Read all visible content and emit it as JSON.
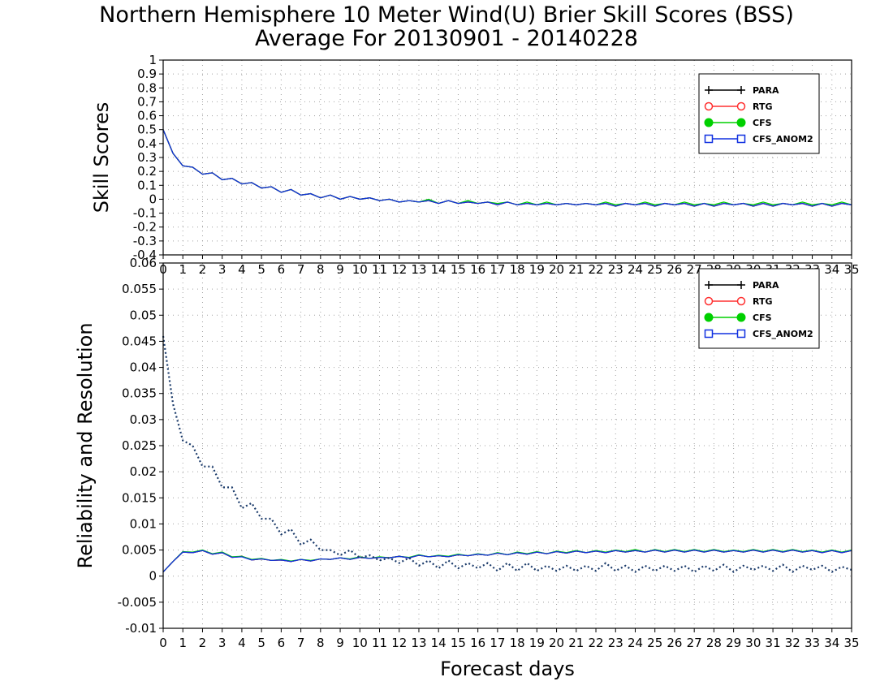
{
  "title": "Northern Hemisphere 10 Meter Wind(U) Brier Skill Scores (BSS)",
  "subtitle": "Average For 20130901 - 20140228",
  "chart_data": [
    {
      "type": "line",
      "ylabel": "Skill Scores",
      "xlabel": "",
      "xlim": [
        0,
        35
      ],
      "ylim": [
        -0.4,
        1
      ],
      "yticks": [
        "1",
        "0.9",
        "0.8",
        "0.7",
        "0.6",
        "0.5",
        "0.4",
        "0.3",
        "0.2",
        "0.1",
        "0",
        "-0.1",
        "-0.2",
        "-0.3",
        "-0.4"
      ],
      "xticks": [
        "0",
        "1",
        "2",
        "3",
        "4",
        "5",
        "6",
        "7",
        "8",
        "9",
        "10",
        "11",
        "12",
        "13",
        "14",
        "15",
        "16",
        "17",
        "18",
        "19",
        "20",
        "21",
        "22",
        "23",
        "24",
        "25",
        "26",
        "27",
        "28",
        "29",
        "30",
        "31",
        "32",
        "33",
        "34",
        "35"
      ],
      "grid": true,
      "legend_position": "top-right",
      "x": [
        0,
        0.5,
        1,
        1.5,
        2,
        2.5,
        3,
        3.5,
        4,
        4.5,
        5,
        5.5,
        6,
        6.5,
        7,
        7.5,
        8,
        8.5,
        9,
        9.5,
        10,
        10.5,
        11,
        11.5,
        12,
        12.5,
        13,
        13.5,
        14,
        14.5,
        15,
        15.5,
        16,
        16.5,
        17,
        17.5,
        18,
        18.5,
        19,
        19.5,
        20,
        20.5,
        21,
        21.5,
        22,
        22.5,
        23,
        23.5,
        24,
        24.5,
        25,
        25.5,
        26,
        26.5,
        27,
        27.5,
        28,
        28.5,
        29,
        29.5,
        30,
        30.5,
        31,
        31.5,
        32,
        32.5,
        33,
        33.5,
        34,
        34.5,
        35
      ],
      "series": [
        {
          "name": "PARA",
          "color": "#000000",
          "marker": "plus",
          "values": [
            0.5,
            0.33,
            0.24,
            0.23,
            0.18,
            0.19,
            0.14,
            0.15,
            0.11,
            0.12,
            0.08,
            0.09,
            0.05,
            0.07,
            0.03,
            0.04,
            0.01,
            0.03,
            0.0,
            0.02,
            0.0,
            0.01,
            -0.01,
            0.0,
            -0.02,
            -0.01,
            -0.02,
            -0.01,
            -0.03,
            -0.01,
            -0.03,
            -0.02,
            -0.03,
            -0.02,
            -0.04,
            -0.02,
            -0.04,
            -0.03,
            -0.04,
            -0.03,
            -0.04,
            -0.03,
            -0.04,
            -0.03,
            -0.04,
            -0.03,
            -0.05,
            -0.03,
            -0.04,
            -0.03,
            -0.05,
            -0.03,
            -0.04,
            -0.03,
            -0.05,
            -0.03,
            -0.05,
            -0.03,
            -0.04,
            -0.03,
            -0.05,
            -0.03,
            -0.05,
            -0.03,
            -0.04,
            -0.03,
            -0.05,
            -0.03,
            -0.05,
            -0.03,
            -0.04
          ]
        },
        {
          "name": "RTG",
          "color": "#ff3030",
          "marker": "circle",
          "values": [
            0.5,
            0.33,
            0.24,
            0.23,
            0.18,
            0.19,
            0.14,
            0.15,
            0.11,
            0.12,
            0.08,
            0.09,
            0.05,
            0.07,
            0.03,
            0.04,
            0.01,
            0.03,
            0.0,
            0.02,
            0.0,
            0.01,
            -0.01,
            0.0,
            -0.02,
            -0.01,
            -0.02,
            -0.01,
            -0.03,
            -0.01,
            -0.03,
            -0.02,
            -0.03,
            -0.02,
            -0.04,
            -0.02,
            -0.04,
            -0.03,
            -0.04,
            -0.03,
            -0.04,
            -0.03,
            -0.04,
            -0.03,
            -0.04,
            -0.03,
            -0.05,
            -0.03,
            -0.04,
            -0.03,
            -0.05,
            -0.03,
            -0.04,
            -0.03,
            -0.05,
            -0.03,
            -0.05,
            -0.03,
            -0.04,
            -0.03,
            -0.05,
            -0.03,
            -0.05,
            -0.03,
            -0.04,
            -0.03,
            -0.05,
            -0.03,
            -0.05,
            -0.03,
            -0.04
          ]
        },
        {
          "name": "CFS",
          "color": "#00d000",
          "marker": "dot",
          "values": [
            0.5,
            0.33,
            0.24,
            0.23,
            0.18,
            0.19,
            0.14,
            0.15,
            0.11,
            0.12,
            0.08,
            0.09,
            0.05,
            0.07,
            0.03,
            0.04,
            0.01,
            0.03,
            0.0,
            0.02,
            0.0,
            0.01,
            -0.01,
            0.0,
            -0.02,
            -0.01,
            -0.02,
            0.0,
            -0.03,
            -0.01,
            -0.03,
            -0.01,
            -0.03,
            -0.02,
            -0.03,
            -0.02,
            -0.04,
            -0.02,
            -0.04,
            -0.02,
            -0.04,
            -0.03,
            -0.04,
            -0.03,
            -0.04,
            -0.02,
            -0.04,
            -0.03,
            -0.04,
            -0.02,
            -0.04,
            -0.03,
            -0.04,
            -0.02,
            -0.04,
            -0.03,
            -0.04,
            -0.02,
            -0.04,
            -0.03,
            -0.04,
            -0.02,
            -0.04,
            -0.03,
            -0.04,
            -0.02,
            -0.04,
            -0.03,
            -0.04,
            -0.02,
            -0.04
          ]
        },
        {
          "name": "CFS_ANOM2",
          "color": "#1030e0",
          "marker": "square",
          "values": [
            0.5,
            0.33,
            0.24,
            0.23,
            0.18,
            0.19,
            0.14,
            0.15,
            0.11,
            0.12,
            0.08,
            0.09,
            0.05,
            0.07,
            0.03,
            0.04,
            0.01,
            0.03,
            0.0,
            0.02,
            0.0,
            0.01,
            -0.01,
            0.0,
            -0.02,
            -0.01,
            -0.02,
            -0.01,
            -0.03,
            -0.01,
            -0.03,
            -0.02,
            -0.03,
            -0.02,
            -0.04,
            -0.02,
            -0.04,
            -0.03,
            -0.04,
            -0.03,
            -0.04,
            -0.03,
            -0.04,
            -0.03,
            -0.04,
            -0.03,
            -0.05,
            -0.03,
            -0.04,
            -0.03,
            -0.05,
            -0.03,
            -0.04,
            -0.03,
            -0.05,
            -0.03,
            -0.05,
            -0.03,
            -0.04,
            -0.03,
            -0.05,
            -0.03,
            -0.05,
            -0.03,
            -0.04,
            -0.03,
            -0.05,
            -0.03,
            -0.05,
            -0.03,
            -0.04
          ]
        }
      ]
    },
    {
      "type": "line",
      "ylabel": "Reliability and Resolution",
      "xlabel": "Forecast days",
      "xlim": [
        0,
        35
      ],
      "ylim": [
        -0.01,
        0.06
      ],
      "yticks": [
        "0.06",
        "0.055",
        "0.05",
        "0.045",
        "0.04",
        "0.035",
        "0.03",
        "0.025",
        "0.02",
        "0.015",
        "0.01",
        "0.005",
        "0",
        "-0.005",
        "-0.01"
      ],
      "xticks": [
        "0",
        "1",
        "2",
        "3",
        "4",
        "5",
        "6",
        "7",
        "8",
        "9",
        "10",
        "11",
        "12",
        "13",
        "14",
        "15",
        "16",
        "17",
        "18",
        "19",
        "20",
        "21",
        "22",
        "23",
        "24",
        "25",
        "26",
        "27",
        "28",
        "29",
        "30",
        "31",
        "32",
        "33",
        "34",
        "35"
      ],
      "grid": true,
      "legend_position": "top-right",
      "x": [
        0,
        0.5,
        1,
        1.5,
        2,
        2.5,
        3,
        3.5,
        4,
        4.5,
        5,
        5.5,
        6,
        6.5,
        7,
        7.5,
        8,
        8.5,
        9,
        9.5,
        10,
        10.5,
        11,
        11.5,
        12,
        12.5,
        13,
        13.5,
        14,
        14.5,
        15,
        15.5,
        16,
        16.5,
        17,
        17.5,
        18,
        18.5,
        19,
        19.5,
        20,
        20.5,
        21,
        21.5,
        22,
        22.5,
        23,
        23.5,
        24,
        24.5,
        25,
        25.5,
        26,
        26.5,
        27,
        27.5,
        28,
        28.5,
        29,
        29.5,
        30,
        30.5,
        31,
        31.5,
        32,
        32.5,
        33,
        33.5,
        34,
        34.5,
        35
      ],
      "series": [
        {
          "name": "PARA",
          "color": "#000000",
          "marker": "plus",
          "line": "solid",
          "values": [
            0.0008,
            0.0028,
            0.0046,
            0.0045,
            0.0049,
            0.0042,
            0.0045,
            0.0036,
            0.0038,
            0.0031,
            0.0033,
            0.003,
            0.0031,
            0.0028,
            0.0032,
            0.0029,
            0.0033,
            0.0032,
            0.0035,
            0.0032,
            0.0036,
            0.0034,
            0.0036,
            0.0035,
            0.0038,
            0.0035,
            0.004,
            0.0037,
            0.0039,
            0.0037,
            0.0041,
            0.0039,
            0.0042,
            0.004,
            0.0044,
            0.0041,
            0.0045,
            0.0042,
            0.0046,
            0.0043,
            0.0047,
            0.0044,
            0.0048,
            0.0045,
            0.0048,
            0.0045,
            0.0049,
            0.0046,
            0.0049,
            0.0046,
            0.005,
            0.0046,
            0.005,
            0.0046,
            0.005,
            0.0046,
            0.005,
            0.0046,
            0.0049,
            0.0046,
            0.005,
            0.0046,
            0.005,
            0.0046,
            0.005,
            0.0046,
            0.0049,
            0.0045,
            0.0049,
            0.0045,
            0.0049
          ]
        },
        {
          "name": "RTG",
          "color": "#ff3030",
          "marker": "circle",
          "line": "solid",
          "values": [
            0.0008,
            0.0028,
            0.0046,
            0.0045,
            0.0049,
            0.0042,
            0.0045,
            0.0036,
            0.0038,
            0.0031,
            0.0033,
            0.003,
            0.0031,
            0.0028,
            0.0032,
            0.0029,
            0.0033,
            0.0032,
            0.0035,
            0.0032,
            0.0036,
            0.0034,
            0.0036,
            0.0035,
            0.0038,
            0.0035,
            0.004,
            0.0037,
            0.0039,
            0.0037,
            0.0041,
            0.0039,
            0.0042,
            0.004,
            0.0044,
            0.0041,
            0.0045,
            0.0042,
            0.0046,
            0.0043,
            0.0047,
            0.0044,
            0.0048,
            0.0045,
            0.0048,
            0.0045,
            0.0049,
            0.0046,
            0.0049,
            0.0046,
            0.005,
            0.0046,
            0.005,
            0.0046,
            0.005,
            0.0046,
            0.005,
            0.0046,
            0.0049,
            0.0046,
            0.005,
            0.0046,
            0.005,
            0.0046,
            0.005,
            0.0046,
            0.0049,
            0.0045,
            0.0049,
            0.0045,
            0.0049
          ]
        },
        {
          "name": "CFS",
          "color": "#00d000",
          "marker": "dot",
          "line": "solid",
          "values": [
            0.0008,
            0.0028,
            0.0047,
            0.0046,
            0.005,
            0.0043,
            0.0046,
            0.0037,
            0.0038,
            0.0032,
            0.0034,
            0.003,
            0.0032,
            0.0029,
            0.0032,
            0.003,
            0.0033,
            0.0032,
            0.0035,
            0.0033,
            0.0037,
            0.0034,
            0.0037,
            0.0035,
            0.0038,
            0.0036,
            0.0041,
            0.0037,
            0.004,
            0.0038,
            0.0042,
            0.0039,
            0.0043,
            0.004,
            0.0045,
            0.0041,
            0.0046,
            0.0043,
            0.0047,
            0.0043,
            0.0048,
            0.0045,
            0.0049,
            0.0045,
            0.0049,
            0.0046,
            0.005,
            0.0047,
            0.0051,
            0.0046,
            0.0051,
            0.0047,
            0.0051,
            0.0047,
            0.0051,
            0.0047,
            0.0051,
            0.0047,
            0.005,
            0.0047,
            0.0051,
            0.0047,
            0.0051,
            0.0047,
            0.0051,
            0.0047,
            0.005,
            0.0046,
            0.005,
            0.0046,
            0.005
          ]
        },
        {
          "name": "CFS_ANOM2",
          "color": "#1030e0",
          "marker": "square",
          "line": "solid",
          "values": [
            0.0008,
            0.0028,
            0.0046,
            0.0045,
            0.0049,
            0.0042,
            0.0045,
            0.0036,
            0.0037,
            0.0031,
            0.0033,
            0.003,
            0.0031,
            0.0028,
            0.0032,
            0.0029,
            0.0033,
            0.0032,
            0.0035,
            0.0032,
            0.0036,
            0.0034,
            0.0036,
            0.0035,
            0.0038,
            0.0035,
            0.004,
            0.0037,
            0.0039,
            0.0037,
            0.0041,
            0.0039,
            0.0042,
            0.004,
            0.0044,
            0.0041,
            0.0045,
            0.0042,
            0.0046,
            0.0043,
            0.0047,
            0.0044,
            0.0048,
            0.0045,
            0.0048,
            0.0045,
            0.0049,
            0.0046,
            0.0049,
            0.0046,
            0.005,
            0.0046,
            0.005,
            0.0046,
            0.005,
            0.0046,
            0.005,
            0.0046,
            0.0049,
            0.0046,
            0.005,
            0.0046,
            0.005,
            0.0046,
            0.005,
            0.0046,
            0.0049,
            0.0045,
            0.0049,
            0.0045,
            0.0049
          ]
        },
        {
          "name": "",
          "color": "#1a3a6a",
          "line": "dotted",
          "values": [
            0.046,
            0.033,
            0.026,
            0.025,
            0.021,
            0.021,
            0.017,
            0.017,
            0.013,
            0.014,
            0.011,
            0.011,
            0.008,
            0.009,
            0.006,
            0.007,
            0.005,
            0.005,
            0.004,
            0.005,
            0.0035,
            0.004,
            0.003,
            0.0035,
            0.0025,
            0.0035,
            0.002,
            0.003,
            0.0015,
            0.003,
            0.0015,
            0.0025,
            0.0015,
            0.0025,
            0.001,
            0.0025,
            0.001,
            0.0025,
            0.001,
            0.002,
            0.001,
            0.002,
            0.001,
            0.002,
            0.001,
            0.0025,
            0.001,
            0.002,
            0.0008,
            0.002,
            0.001,
            0.002,
            0.001,
            0.002,
            0.0008,
            0.002,
            0.001,
            0.0022,
            0.0008,
            0.002,
            0.0012,
            0.002,
            0.001,
            0.0022,
            0.0008,
            0.002,
            0.0012,
            0.002,
            0.0008,
            0.0018,
            0.0012
          ]
        }
      ]
    }
  ]
}
